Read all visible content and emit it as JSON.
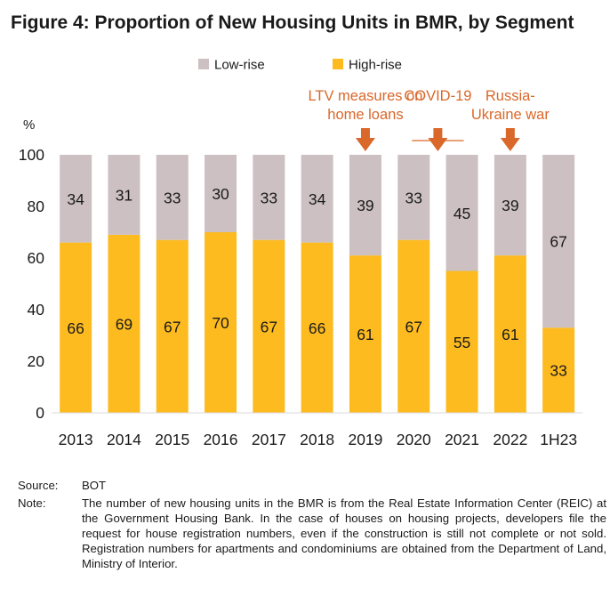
{
  "title": "Figure 4: Proportion of New Housing Units in BMR, by Segment",
  "chart_data": {
    "type": "bar",
    "stacked": true,
    "categories": [
      "2013",
      "2014",
      "2015",
      "2016",
      "2017",
      "2018",
      "2019",
      "2020",
      "2021",
      "2022",
      "1H23"
    ],
    "series": [
      {
        "name": "High-rise",
        "color": "#FDBB20",
        "values": [
          66,
          69,
          67,
          70,
          67,
          66,
          61,
          67,
          55,
          61,
          33
        ]
      },
      {
        "name": "Low-rise",
        "color": "#CCC0C2",
        "values": [
          34,
          31,
          33,
          30,
          33,
          34,
          39,
          33,
          45,
          39,
          67
        ]
      }
    ],
    "ylabel": "%",
    "ylim": [
      0,
      100
    ],
    "yticks": [
      0,
      20,
      40,
      60,
      80,
      100
    ],
    "grid": false,
    "legend_position": "top-center",
    "legend_order": [
      "Low-rise",
      "High-rise"
    ],
    "annotations": [
      {
        "lines": [
          "LTV measures on",
          "home loans"
        ],
        "categories": [
          "2019"
        ],
        "color": "#D9682A"
      },
      {
        "lines": [
          "COVID-19"
        ],
        "categories": [
          "2020",
          "2021"
        ],
        "color": "#D9682A"
      },
      {
        "lines": [
          "Russia-",
          "Ukraine war"
        ],
        "categories": [
          "2022"
        ],
        "color": "#D9682A"
      }
    ]
  },
  "footnotes": {
    "source_label": "Source:",
    "source_text": "BOT",
    "note_label": "Note:",
    "note_text": "The number of new housing units in the BMR is from the Real Estate Information Center (REIC) at the Government Housing Bank. In the case of houses on housing projects, developers file the request for house registration numbers, even if the construction is still not complete or not sold. Registration numbers for apartments and condominiums are obtained from the Department of Land, Ministry of Interior."
  }
}
